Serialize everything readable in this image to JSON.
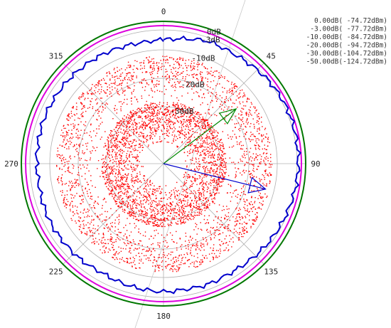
{
  "chart_data": {
    "type": "scatter",
    "subtype": "polar",
    "angle_ticks": [
      "0",
      "45",
      "90",
      "135",
      "180",
      "225",
      "270",
      "315"
    ],
    "angle_tick_values": [
      0,
      45,
      90,
      135,
      180,
      225,
      270,
      315
    ],
    "ring_labels": [
      "0dB",
      "-3dB",
      "-10dB",
      "-20dB",
      "-30dB"
    ],
    "ring_values_db": [
      0,
      -3,
      -10,
      -20,
      -30,
      -50
    ],
    "radial_range_db": [
      -50,
      0
    ],
    "grid": true,
    "legend_position": "top-right",
    "legend": [
      "  0.00dB( -74.72dBm)",
      " -3.00dB( -77.72dBm)",
      "-10.00dB( -84.72dBm)",
      "-20.00dB( -94.72dBm)",
      "-30.00dB(-104.72dBm)",
      "-50.00dB(-124.72dBm)"
    ],
    "reference_circles": [
      {
        "db": 0.0,
        "color": "#007700"
      },
      {
        "db": -1.5,
        "color": "#dd00dd"
      }
    ],
    "blue_trace": {
      "color": "#0000cc",
      "angle_deg": [
        0,
        10,
        20,
        30,
        40,
        50,
        60,
        70,
        80,
        90,
        100,
        110,
        120,
        130,
        140,
        150,
        160,
        170,
        180,
        190,
        200,
        210,
        220,
        230,
        240,
        250,
        260,
        270,
        280,
        290,
        300,
        310,
        320,
        330,
        340,
        350
      ],
      "db": [
        -6.5,
        -5.5,
        -4.2,
        -4.3,
        -3.8,
        -3.0,
        -2.6,
        -2.4,
        -2.5,
        -2.6,
        -2.8,
        -3.2,
        -3.6,
        -4.0,
        -4.6,
        -5.0,
        -4.8,
        -5.2,
        -5.0,
        -5.3,
        -5.6,
        -6.0,
        -5.5,
        -5.4,
        -5.2,
        -5.3,
        -5.6,
        -5.4,
        -5.3,
        -5.1,
        -5.3,
        -5.4,
        -5.7,
        -6.0,
        -6.5,
        -6.8
      ]
    },
    "red_cloud": {
      "color": "#ff0000",
      "inner_db_range": [
        -43,
        -28
      ],
      "outer_db_range": [
        -28,
        -12
      ]
    },
    "vectors": [
      {
        "color": "#008800",
        "angle_deg": 53,
        "db": -18
      },
      {
        "color": "#0000cc",
        "angle_deg": 104,
        "db": -13
      }
    ]
  }
}
